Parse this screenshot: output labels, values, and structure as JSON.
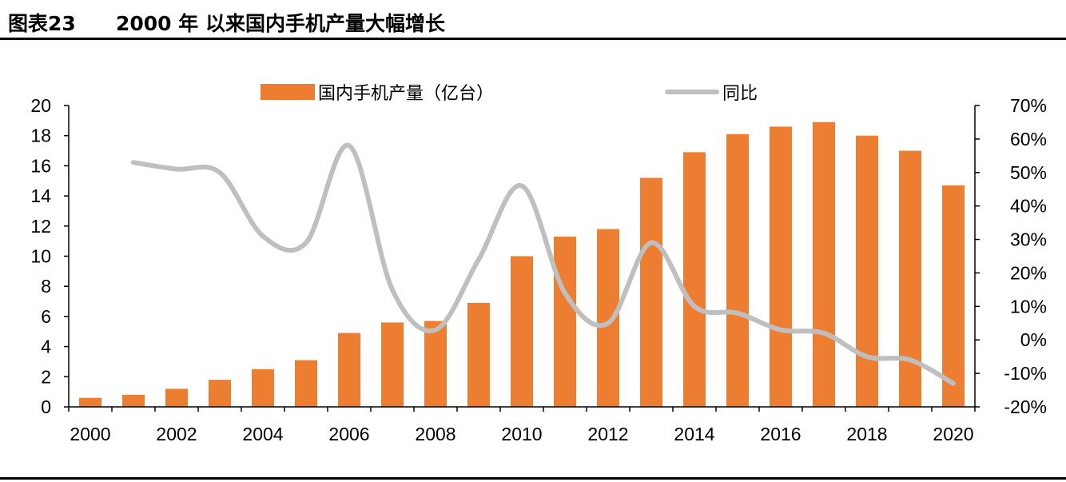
{
  "header": {
    "figure_number": "图表23",
    "title": "2000 年 以来国内手机产量大幅增长"
  },
  "colors": {
    "bar": "#ED7D31",
    "line": "#BFBFBF",
    "axis": "#000000",
    "rule": "#000000"
  },
  "chart_data": {
    "type": "bar",
    "title": "",
    "categories": [
      "2000",
      "2001",
      "2002",
      "2003",
      "2004",
      "2005",
      "2006",
      "2007",
      "2008",
      "2009",
      "2010",
      "2011",
      "2012",
      "2013",
      "2014",
      "2015",
      "2016",
      "2017",
      "2018",
      "2019",
      "2020"
    ],
    "x_tick_labels": [
      "2000",
      "2002",
      "2004",
      "2006",
      "2008",
      "2010",
      "2012",
      "2014",
      "2016",
      "2018",
      "2020"
    ],
    "series": [
      {
        "name": "国内手机产量（亿台）",
        "type": "bar",
        "axis": "left",
        "values": [
          0.6,
          0.8,
          1.2,
          1.8,
          2.5,
          3.1,
          4.9,
          5.6,
          5.7,
          6.9,
          10.0,
          11.3,
          11.8,
          15.2,
          16.9,
          18.1,
          18.6,
          18.9,
          18.0,
          17.0,
          14.7
        ]
      },
      {
        "name": "同比",
        "type": "line",
        "axis": "right",
        "values": [
          null,
          53,
          51,
          50,
          31,
          29,
          58,
          15,
          3,
          24,
          46,
          14,
          5,
          29,
          10,
          8,
          3,
          2,
          -5,
          -6,
          -13
        ]
      }
    ],
    "y_left": {
      "min": 0,
      "max": 20,
      "step": 2,
      "tick_labels": [
        "0",
        "2",
        "4",
        "6",
        "8",
        "10",
        "12",
        "14",
        "16",
        "18",
        "20"
      ]
    },
    "y_right": {
      "min": -20,
      "max": 70,
      "step": 10,
      "tick_labels": [
        "-20%",
        "-10%",
        "0%",
        "10%",
        "20%",
        "30%",
        "40%",
        "50%",
        "60%",
        "70%"
      ]
    },
    "legend": {
      "position": "top",
      "items": [
        "国内手机产量（亿台）",
        "同比"
      ]
    },
    "grid": false
  }
}
